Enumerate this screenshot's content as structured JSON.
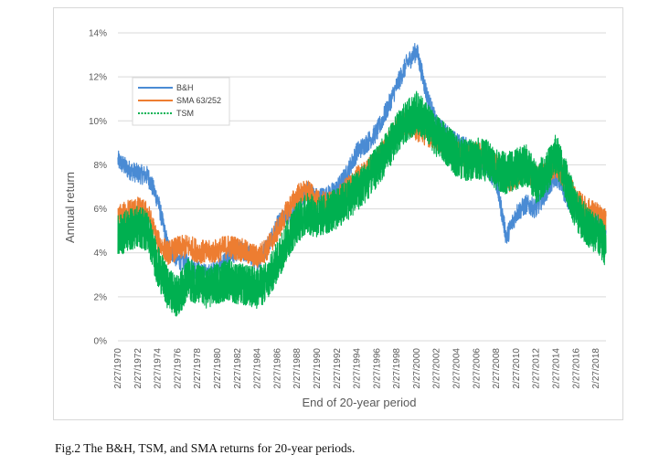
{
  "chart_data": {
    "type": "line",
    "title": "",
    "xlabel": "End of 20-year period",
    "ylabel": "Annual return",
    "ylim": [
      0,
      14
    ],
    "y_ticks": [
      "0%",
      "2%",
      "4%",
      "6%",
      "8%",
      "10%",
      "12%",
      "14%"
    ],
    "x_tick_labels": [
      "2/27/1970",
      "2/27/1972",
      "2/27/1974",
      "2/27/1976",
      "2/27/1978",
      "2/27/1980",
      "2/27/1982",
      "2/27/1984",
      "2/27/1986",
      "2/27/1988",
      "2/27/1990",
      "2/27/1992",
      "2/27/1994",
      "2/27/1996",
      "2/27/1998",
      "2/27/2000",
      "2/27/2002",
      "2/27/2004",
      "2/27/2006",
      "2/27/2008",
      "2/27/2010",
      "2/27/2012",
      "2/27/2014",
      "2/27/2016",
      "2/27/2018"
    ],
    "grid": true,
    "legend_position": "top-left",
    "series": [
      {
        "name": "B&H",
        "color": "#4a8bd4",
        "x": [
          1970,
          1971,
          1972,
          1973,
          1974,
          1975,
          1976,
          1977,
          1978,
          1979,
          1980,
          1981,
          1982,
          1983,
          1984,
          1985,
          1986,
          1987,
          1988,
          1989,
          1990,
          1991,
          1992,
          1993,
          1994,
          1995,
          1996,
          1997,
          1998,
          1999,
          2000,
          2001,
          2002,
          2003,
          2004,
          2005,
          2006,
          2007,
          2008,
          2009,
          2010,
          2011,
          2012,
          2013,
          2014,
          2015,
          2016,
          2017,
          2018,
          2019
        ],
        "values": [
          8.2,
          7.8,
          7.6,
          7.5,
          6.4,
          4.3,
          3.7,
          3.5,
          3.2,
          3.0,
          3.3,
          3.8,
          4.1,
          4.0,
          3.6,
          4.3,
          5.3,
          5.7,
          6.1,
          6.8,
          6.5,
          6.6,
          6.9,
          7.6,
          8.6,
          9.0,
          9.5,
          10.5,
          11.6,
          12.6,
          13.2,
          11.2,
          9.8,
          9.4,
          9.0,
          8.8,
          8.4,
          8.0,
          7.2,
          4.7,
          5.8,
          6.2,
          6.0,
          6.8,
          7.5,
          6.6,
          5.8,
          5.6,
          5.4,
          5.0
        ]
      },
      {
        "name": "SMA 63/252",
        "color": "#ed7d31",
        "x": [
          1970,
          1971,
          1972,
          1973,
          1974,
          1975,
          1976,
          1977,
          1978,
          1979,
          1980,
          1981,
          1982,
          1983,
          1984,
          1985,
          1986,
          1987,
          1988,
          1989,
          1990,
          1991,
          1992,
          1993,
          1994,
          1995,
          1996,
          1997,
          1998,
          1999,
          2000,
          2001,
          2002,
          2003,
          2004,
          2005,
          2006,
          2007,
          2008,
          2009,
          2010,
          2011,
          2012,
          2013,
          2014,
          2015,
          2016,
          2017,
          2018,
          2019
        ],
        "values": [
          5.6,
          5.9,
          6.0,
          5.8,
          4.5,
          4.0,
          4.2,
          4.3,
          4.1,
          4.0,
          4.1,
          4.3,
          4.2,
          4.0,
          3.8,
          4.2,
          5.0,
          5.9,
          6.6,
          6.8,
          6.3,
          6.2,
          6.4,
          6.9,
          7.4,
          7.7,
          8.2,
          9.0,
          9.7,
          10.0,
          9.6,
          9.4,
          9.2,
          9.0,
          8.6,
          8.4,
          8.5,
          8.3,
          8.0,
          7.2,
          7.5,
          7.8,
          7.4,
          7.6,
          8.0,
          7.3,
          6.4,
          6.0,
          5.8,
          5.4
        ]
      },
      {
        "name": "TSM",
        "color": "#00b050",
        "x": [
          1970,
          1971,
          1972,
          1973,
          1974,
          1975,
          1976,
          1977,
          1978,
          1979,
          1980,
          1981,
          1982,
          1983,
          1984,
          1985,
          1986,
          1987,
          1988,
          1989,
          1990,
          1991,
          1992,
          1993,
          1994,
          1995,
          1996,
          1997,
          1998,
          1999,
          2000,
          2001,
          2002,
          2003,
          2004,
          2005,
          2006,
          2007,
          2008,
          2009,
          2010,
          2011,
          2012,
          2013,
          2014,
          2015,
          2016,
          2017,
          2018,
          2019
        ],
        "values": [
          4.8,
          5.0,
          5.2,
          5.0,
          3.4,
          2.4,
          2.0,
          2.8,
          2.6,
          2.4,
          2.6,
          2.8,
          2.6,
          2.5,
          2.4,
          2.7,
          3.6,
          4.6,
          5.4,
          5.8,
          5.6,
          5.8,
          6.0,
          6.4,
          6.8,
          7.3,
          7.9,
          8.6,
          9.4,
          10.0,
          10.4,
          9.9,
          9.3,
          8.9,
          8.4,
          8.2,
          8.3,
          8.2,
          7.8,
          7.6,
          7.8,
          8.0,
          7.2,
          7.6,
          8.5,
          7.3,
          5.9,
          5.3,
          4.9,
          4.3
        ]
      }
    ],
    "legend": [
      "B&H",
      "SMA 63/252",
      "TSM"
    ]
  },
  "caption": "Fig.2 The B&H, TSM, and SMA returns for 20-year periods."
}
